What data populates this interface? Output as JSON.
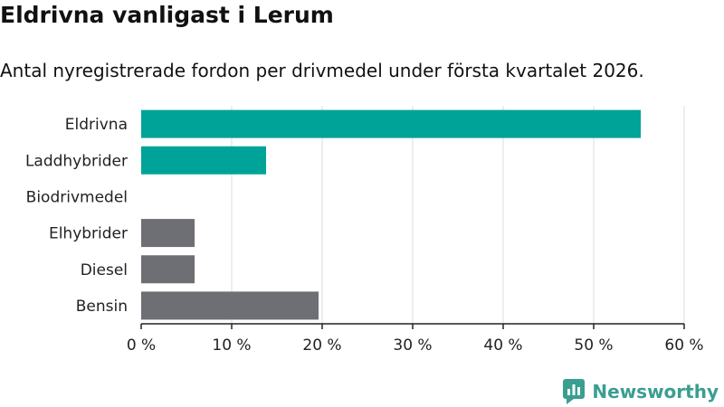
{
  "title": "Eldrivna vanligast i Lerum",
  "subtitle": "Antal nyregistrerade fordon per drivmedel under första kvartalet 2026.",
  "colors": {
    "electric": "#00a398",
    "fossil": "#6e6e75",
    "grid": "#dddddd",
    "brand": "#3a9e90"
  },
  "logo": {
    "text": "Newsworthy",
    "icon": "newsworthy-logo-icon"
  },
  "chart_data": {
    "type": "bar",
    "orientation": "horizontal",
    "categories": [
      "Eldrivna",
      "Laddhybrider",
      "Biodrivmedel",
      "Elhybrider",
      "Diesel",
      "Bensin"
    ],
    "values": [
      55.2,
      13.8,
      0,
      5.9,
      5.9,
      19.6
    ],
    "bar_colors": [
      "#00a398",
      "#00a398",
      "#00a398",
      "#6e6e75",
      "#6e6e75",
      "#6e6e75"
    ],
    "xlim": [
      0,
      60
    ],
    "xticks": [
      0,
      10,
      20,
      30,
      40,
      50,
      60
    ],
    "xtick_labels": [
      "0 %",
      "10 %",
      "20 %",
      "30 %",
      "40 %",
      "50 %",
      "60 %"
    ],
    "grid": true,
    "legend": false
  }
}
